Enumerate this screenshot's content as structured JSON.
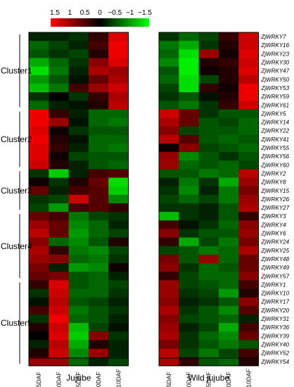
{
  "chart_data": {
    "type": "heatmap",
    "colorbar": {
      "ticks": [
        "1.5",
        "1",
        "0.5",
        "0",
        "−0.5",
        "−1",
        "−1.5"
      ],
      "low_color": "#00ff00",
      "mid_color": "#000000",
      "high_color": "#ff0000",
      "range": [
        -1.5,
        1.5
      ]
    },
    "panels": [
      {
        "name": "Jujube"
      },
      {
        "name": "Wild jujube"
      }
    ],
    "columns": [
      "15DAF",
      "40DAF",
      "65DAF",
      "90DAF",
      "110DAF"
    ],
    "genes": [
      "ZjWRKY7",
      "ZjWRKY16",
      "ZjWRKY23",
      "ZjWRKY30",
      "ZjWRKY47",
      "ZjWRKY50",
      "ZjWRKY53",
      "ZjWRKY59",
      "ZjWRKY61",
      "ZjWRKY5",
      "ZjWRKY14",
      "ZjWRKY22",
      "ZjWRKY41",
      "ZjWRKY55",
      "ZjWRKY56",
      "ZjWRKY60",
      "ZjWRKY2",
      "ZjWRKY8",
      "ZjWRKY15",
      "ZjWRKY26",
      "ZjWRKY27",
      "ZjWRKY3",
      "ZjWRKY4",
      "ZjWRKY6",
      "ZjWRKY24",
      "ZjWRKY25",
      "ZjWRKY48",
      "ZjWRKY49",
      "ZjWRKY57",
      "ZjWRKY1",
      "ZjWRKY10",
      "ZjWRKY17",
      "ZjWRKY20",
      "ZjWRKY31",
      "ZjWRKY36",
      "ZjWRKY39",
      "ZjWRKY40",
      "ZjWRKY52",
      "ZjWRKY54"
    ],
    "clusters": [
      {
        "name": "Cluster1",
        "size": 9
      },
      {
        "name": "Cluster2",
        "size": 7
      },
      {
        "name": "Cluster3",
        "size": 5
      },
      {
        "name": "Cluster4",
        "size": 8
      },
      {
        "name": "Cluster5",
        "size": 10
      }
    ],
    "values_jujube": [
      [
        -0.2,
        -0.2,
        -0.3,
        0.3,
        1.3
      ],
      [
        -0.6,
        -0.4,
        -0.2,
        0.4,
        1.4
      ],
      [
        -0.5,
        -0.3,
        -0.4,
        0.2,
        1.4
      ],
      [
        -1.0,
        -0.6,
        -0.3,
        0.8,
        1.3
      ],
      [
        -1.3,
        -0.7,
        -0.2,
        1.0,
        0.9
      ],
      [
        -0.9,
        -0.5,
        -0.1,
        0.6,
        1.0
      ],
      [
        -1.1,
        -0.7,
        0.4,
        0.9,
        1.2
      ],
      [
        -0.3,
        0.0,
        -0.3,
        0.3,
        1.0
      ],
      [
        -0.6,
        -0.2,
        -0.1,
        0.2,
        1.1
      ],
      [
        1.4,
        0.3,
        -0.2,
        -0.6,
        -0.6
      ],
      [
        1.4,
        0.9,
        -0.1,
        -0.6,
        -0.7
      ],
      [
        1.3,
        0.1,
        -0.3,
        -0.5,
        -0.5
      ],
      [
        1.4,
        0.2,
        -0.1,
        -0.6,
        -0.6
      ],
      [
        1.3,
        0.3,
        -0.2,
        -0.6,
        -0.7
      ],
      [
        1.3,
        0.1,
        -0.4,
        -0.5,
        -0.5
      ],
      [
        1.2,
        0.2,
        -0.2,
        -0.5,
        -0.6
      ],
      [
        -0.3,
        -1.2,
        -0.2,
        0.4,
        0.5
      ],
      [
        0.1,
        -0.3,
        0.2,
        0.6,
        -1.3
      ],
      [
        0.6,
        -0.2,
        0.4,
        0.5,
        -1.2
      ],
      [
        -0.3,
        -0.4,
        1.2,
        0.5,
        -0.8
      ],
      [
        -0.4,
        -0.9,
        0.4,
        0.5,
        0.3
      ],
      [
        0.6,
        0.4,
        -0.7,
        -0.4,
        -0.3
      ],
      [
        0.9,
        0.6,
        -0.8,
        -0.6,
        -0.2
      ],
      [
        1.1,
        0.6,
        -0.9,
        -0.6,
        -0.4
      ],
      [
        0.8,
        -0.6,
        -0.8,
        -0.5,
        0.2
      ],
      [
        1.0,
        0.3,
        -0.7,
        -0.8,
        -0.4
      ],
      [
        0.9,
        0.8,
        -0.6,
        -0.7,
        -0.3
      ],
      [
        0.7,
        -0.2,
        -0.9,
        -0.8,
        0.1
      ],
      [
        0.6,
        0.7,
        -0.5,
        -0.6,
        -0.2
      ],
      [
        0.3,
        1.3,
        -0.5,
        -0.6,
        -0.4
      ],
      [
        -0.3,
        1.2,
        -0.6,
        -0.6,
        -0.3
      ],
      [
        -0.1,
        1.1,
        -0.5,
        -0.4,
        -0.2
      ],
      [
        0.4,
        1.2,
        -0.7,
        -0.5,
        -0.3
      ],
      [
        -0.3,
        1.4,
        -0.6,
        -0.5,
        -0.2
      ],
      [
        0.2,
        1.2,
        -1.1,
        -0.4,
        -0.1
      ],
      [
        0.0,
        1.3,
        -1.2,
        0.8,
        -0.3
      ],
      [
        -0.2,
        1.1,
        -1.0,
        0.2,
        -0.2
      ],
      [
        0.2,
        1.2,
        -0.8,
        0.9,
        -0.2
      ],
      [
        0.9,
        0.9,
        -0.6,
        -0.2,
        -0.4
      ]
    ],
    "values_wild": [
      [
        -0.3,
        -0.6,
        -0.4,
        0.3,
        1.2
      ],
      [
        -0.7,
        -1.0,
        -0.3,
        0.2,
        1.2
      ],
      [
        -0.6,
        -1.3,
        0.9,
        0.1,
        1.3
      ],
      [
        -0.8,
        -1.4,
        0.2,
        0.3,
        1.2
      ],
      [
        -0.5,
        -1.4,
        0.1,
        0.2,
        1.3
      ],
      [
        -0.6,
        -1.3,
        -0.4,
        0.2,
        1.1
      ],
      [
        -0.4,
        -1.3,
        0.3,
        0.1,
        1.4
      ],
      [
        -0.3,
        -0.5,
        -0.1,
        0.2,
        1.4
      ],
      [
        -0.5,
        -0.7,
        -0.3,
        0.3,
        1.2
      ],
      [
        1.2,
        0.6,
        -0.3,
        -0.5,
        -0.5
      ],
      [
        1.0,
        0.6,
        -0.5,
        -0.4,
        -0.6
      ],
      [
        0.8,
        -0.4,
        -0.5,
        -0.5,
        -0.6
      ],
      [
        1.1,
        0.5,
        -0.5,
        -0.6,
        -0.5
      ],
      [
        0.1,
        0.8,
        -0.4,
        -0.5,
        -0.6
      ],
      [
        0.9,
        -0.8,
        -0.5,
        -0.3,
        -0.5
      ],
      [
        0.9,
        -0.6,
        -0.5,
        -0.6,
        -0.4
      ],
      [
        -0.5,
        -0.5,
        -0.7,
        -0.6,
        1.1
      ],
      [
        -0.2,
        -0.7,
        -0.3,
        -1.0,
        0.9
      ],
      [
        -0.3,
        -0.8,
        -0.2,
        -0.7,
        0.7
      ],
      [
        -0.4,
        -0.6,
        -0.4,
        -0.7,
        0.9
      ],
      [
        -0.3,
        -0.3,
        -0.2,
        -0.5,
        1.0
      ],
      [
        -1.1,
        -0.3,
        -0.2,
        -0.5,
        0.3
      ],
      [
        0.4,
        -0.1,
        -0.3,
        -0.6,
        0.8
      ],
      [
        0.8,
        -0.3,
        -0.5,
        -0.5,
        0.9
      ],
      [
        0.3,
        -1.0,
        -0.4,
        -0.7,
        0.7
      ],
      [
        -0.4,
        -0.5,
        -0.7,
        -0.6,
        1.0
      ],
      [
        0.7,
        -0.5,
        0.9,
        -0.6,
        0.6
      ],
      [
        0.8,
        -0.3,
        -0.6,
        -0.5,
        0.6
      ],
      [
        0.3,
        -0.4,
        -0.6,
        -0.6,
        0.8
      ],
      [
        0.9,
        -0.4,
        -0.5,
        -0.6,
        0.4
      ],
      [
        0.9,
        -0.3,
        -0.4,
        -0.9,
        0.2
      ],
      [
        0.8,
        -0.2,
        -0.3,
        -0.5,
        0.8
      ],
      [
        1.0,
        -0.3,
        -0.5,
        -0.8,
        0.5
      ],
      [
        0.8,
        -0.4,
        -0.5,
        -0.6,
        -0.2
      ],
      [
        0.9,
        -0.2,
        -0.4,
        -1.0,
        0.4
      ],
      [
        1.0,
        -0.3,
        -0.6,
        -0.8,
        0.6
      ],
      [
        0.7,
        -0.3,
        -0.5,
        -0.7,
        -0.5
      ],
      [
        1.1,
        -0.4,
        -0.7,
        -0.4,
        0.4
      ],
      [
        1.0,
        0.3,
        -0.5,
        -0.6,
        0.2
      ]
    ]
  }
}
